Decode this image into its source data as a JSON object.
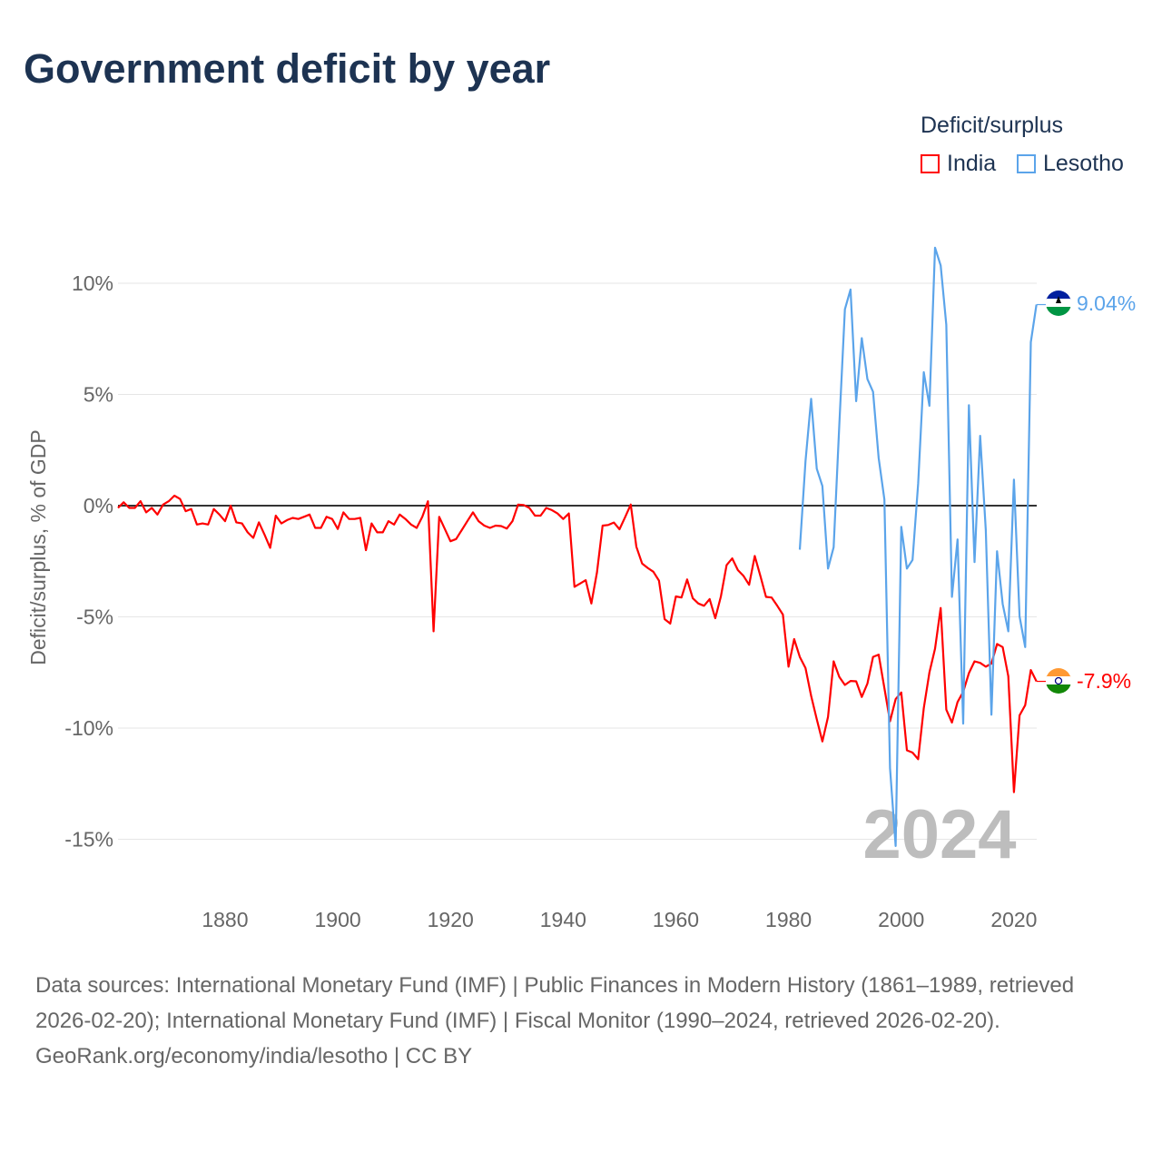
{
  "title": "Government deficit by year",
  "legend": {
    "title": "Deficit/surplus",
    "items": [
      {
        "name": "India",
        "color": "#ff0000"
      },
      {
        "name": "Lesotho",
        "color": "#5ba4ea"
      }
    ]
  },
  "footer": {
    "sources": "Data sources: International Monetary Fund (IMF) | Public Finances in Modern History (1861–1989, retrieved 2026-02-20); International Monetary Fund (IMF) | Fiscal Monitor (1990–2024, retrieved 2026-02-20).",
    "credit": "GeoRank.org/economy/india/lesotho | CC BY"
  },
  "chart_data": {
    "type": "line",
    "title": "Government deficit by year",
    "ylabel": "Deficit/surplus, % of GDP",
    "xlabel": "",
    "year_label": "2024",
    "xlim": [
      1861,
      2024
    ],
    "ylim": [
      -17,
      12
    ],
    "x_ticks": [
      1880,
      1900,
      1920,
      1940,
      1960,
      1980,
      2000,
      2020
    ],
    "y_ticks": [
      {
        "v": 10,
        "label": "10%"
      },
      {
        "v": 5,
        "label": "5%"
      },
      {
        "v": 0,
        "label": "0%"
      },
      {
        "v": -5,
        "label": "-5%"
      },
      {
        "v": -10,
        "label": "-10%"
      },
      {
        "v": -15,
        "label": "-15%"
      }
    ],
    "series": [
      {
        "name": "India",
        "color": "#ff0000",
        "start": 1861,
        "end_label": "-7.9%",
        "values": [
          -0.1,
          0.15,
          -0.1,
          -0.1,
          0.2,
          -0.3,
          -0.1,
          -0.4,
          0.05,
          0.2,
          0.45,
          0.3,
          -0.25,
          -0.15,
          -0.85,
          -0.8,
          -0.85,
          -0.15,
          -0.4,
          -0.7,
          0,
          -0.75,
          -0.8,
          -1.2,
          -1.45,
          -0.75,
          -1.3,
          -1.9,
          -0.45,
          -0.8,
          -0.65,
          -0.55,
          -0.6,
          -0.5,
          -0.4,
          -1.0,
          -1.0,
          -0.5,
          -0.6,
          -1.05,
          -0.3,
          -0.6,
          -0.6,
          -0.55,
          -2.0,
          -0.8,
          -1.2,
          -1.2,
          -0.7,
          -0.85,
          -0.4,
          -0.6,
          -0.85,
          -1.0,
          -0.5,
          0.2,
          -5.65,
          -0.5,
          -1.05,
          -1.6,
          -1.5,
          -1.1,
          -0.7,
          -0.3,
          -0.7,
          -0.9,
          -1.0,
          -0.9,
          -0.92,
          -1.03,
          -0.7,
          0.05,
          0.03,
          -0.1,
          -0.45,
          -0.45,
          -0.1,
          -0.2,
          -0.35,
          -0.6,
          -0.35,
          -3.65,
          -3.5,
          -3.35,
          -4.4,
          -3.0,
          -0.9,
          -0.87,
          -0.76,
          -1.06,
          -0.52,
          0.05,
          -1.85,
          -2.6,
          -2.8,
          -2.97,
          -3.37,
          -5.1,
          -5.3,
          -4.08,
          -4.13,
          -3.32,
          -4.16,
          -4.4,
          -4.5,
          -4.2,
          -5.06,
          -4.08,
          -2.67,
          -2.37,
          -2.9,
          -3.16,
          -3.56,
          -2.26,
          -3.16,
          -4.1,
          -4.13,
          -4.5,
          -4.9,
          -7.24,
          -6.0,
          -6.8,
          -7.3,
          -8.55,
          -9.6,
          -10.6,
          -9.5,
          -7.0,
          -7.7,
          -8.06,
          -7.88,
          -7.9,
          -8.6,
          -8.0,
          -6.8,
          -6.7,
          -8.2,
          -9.7,
          -8.7,
          -8.4,
          -11.0,
          -11.1,
          -11.4,
          -9.1,
          -7.5,
          -6.43,
          -4.6,
          -9.17,
          -9.75,
          -8.83,
          -8.37,
          -7.53,
          -7.0,
          -7.07,
          -7.24,
          -7.1,
          -6.22,
          -6.36,
          -7.67,
          -12.88,
          -9.43,
          -8.97,
          -7.39,
          -7.9
        ]
      },
      {
        "name": "Lesotho",
        "color": "#5ba4ea",
        "start": 1982,
        "end_label": "9.04%",
        "values": [
          -1.98,
          2.0,
          4.8,
          1.66,
          0.88,
          -2.83,
          -1.87,
          3.6,
          8.83,
          9.72,
          4.7,
          7.53,
          5.69,
          5.12,
          2.14,
          0.28,
          -11.8,
          -15.3,
          -0.95,
          -2.83,
          -2.44,
          0.99,
          6.0,
          4.49,
          11.6,
          10.8,
          8.13,
          -4.1,
          -1.52,
          -9.8,
          4.52,
          -2.54,
          3.14,
          -1.1,
          -9.4,
          -2.05,
          -4.42,
          -5.65,
          1.17,
          -4.98,
          -6.36,
          7.35,
          9.04
        ]
      }
    ]
  }
}
